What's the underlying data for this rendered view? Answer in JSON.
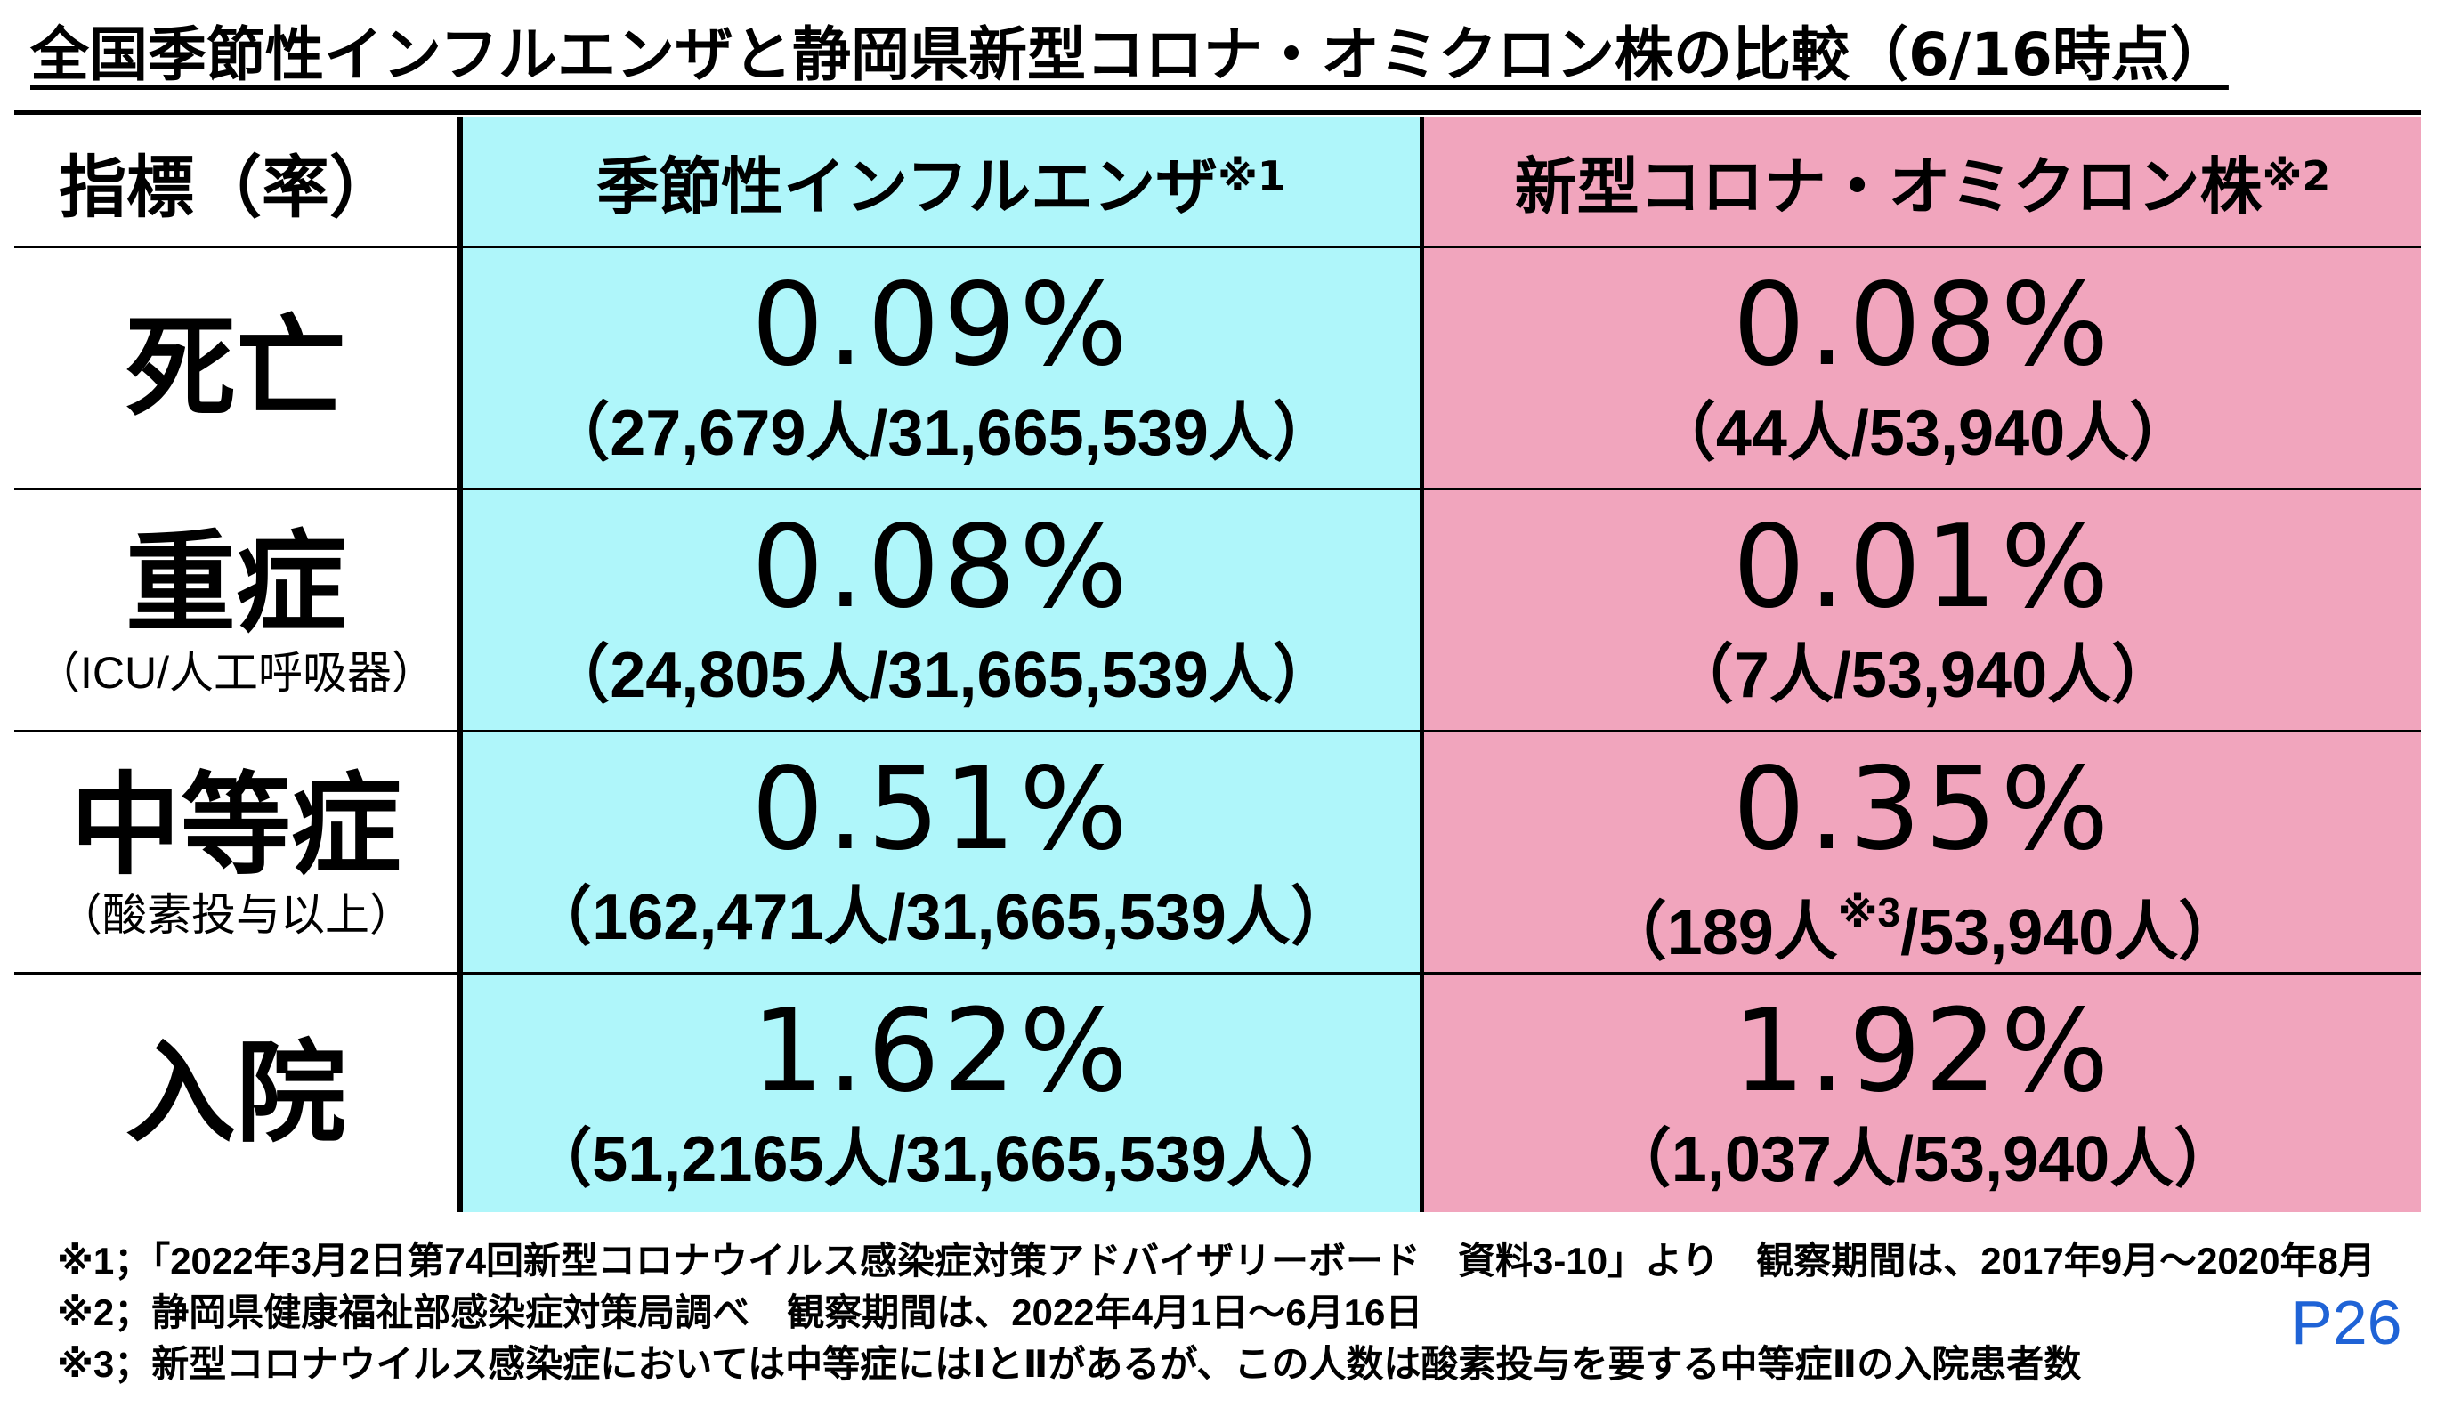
{
  "title": "全国季節性インフルエンザと静岡県新型コロナ・オミクロン株の比較（6/16時点）",
  "header": {
    "indicator": "指標（率）",
    "flu": "季節性インフルエンザ",
    "flu_mark": "※1",
    "covid": "新型コロナ・オミクロン株",
    "covid_mark": "※2"
  },
  "rows": [
    {
      "label": "死亡",
      "sublabel": "",
      "flu_pct": "0.09%",
      "flu_detail": "（27,679人/31,665,539人）",
      "covid_pct": "0.08%",
      "covid_detail": "（44人/53,940人）"
    },
    {
      "label": "重症",
      "sublabel": "（ICU/人工呼吸器）",
      "flu_pct": "0.08%",
      "flu_detail": "（24,805人/31,665,539人）",
      "covid_pct": "0.01%",
      "covid_detail": "（7人/53,940人）"
    },
    {
      "label": "中等症",
      "sublabel": "（酸素投与以上）",
      "flu_pct": "0.51%",
      "flu_detail": "（162,471人/31,665,539人）",
      "covid_pct": "0.35%",
      "covid_detail_a": "（189人",
      "covid_detail_mark": "※3",
      "covid_detail_b": "/53,940人）"
    },
    {
      "label": "入院",
      "sublabel": "",
      "flu_pct": "1.62%",
      "flu_detail": "（51,2165人/31,665,539人）",
      "covid_pct": "1.92%",
      "covid_detail": "（1,037人/53,940人）"
    }
  ],
  "notes": [
    "※1；「2022年3月2日第74回新型コロナウイルス感染症対策アドバイザリーボード　資料3-10」より　観察期間は、2017年9月～2020年8月",
    "※2；静岡県健康福祉部感染症対策局調べ　観察期間は、2022年4月1日～6月16日",
    "※3；新型コロナウイルス感染症においては中等症にはⅠとⅡがあるが、この人数は酸素投与を要する中等症Ⅱの入院患者数"
  ],
  "page_number": "P26",
  "colors": {
    "flu_bg": "#aff6fa",
    "covid_bg": "#f1a5bd",
    "page_number": "#1f63d6"
  }
}
